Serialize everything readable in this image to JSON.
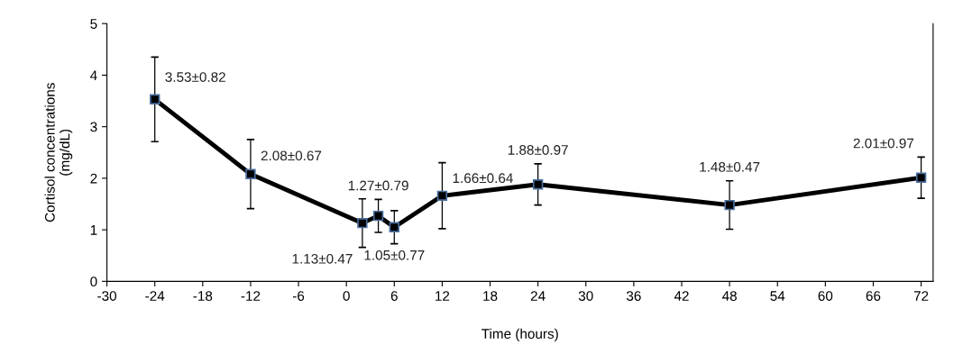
{
  "chart_data": {
    "type": "line",
    "xlabel": "Time (hours)",
    "ylabel": "Cortisol concentrations\n(mg/dL)",
    "x": [
      -24,
      -12,
      2,
      4,
      6,
      12,
      24,
      48,
      72
    ],
    "series": [
      {
        "color": "#000000",
        "values": [
          3.53,
          2.08,
          1.13,
          1.27,
          1.05,
          1.66,
          1.88,
          1.48,
          2.01
        ],
        "errors": [
          0.82,
          0.67,
          0.47,
          0.32,
          0.32,
          0.64,
          0.4,
          0.47,
          0.4
        ],
        "value_labels": [
          "3.53±0.82",
          "2.08±0.67",
          "1.13±0.47",
          "1.27±0.79",
          "1.05±0.77",
          "1.66±0.64",
          "1.88±0.97",
          "1.48±0.47",
          "2.01±0.97"
        ]
      }
    ],
    "xlim": [
      -30,
      73.5
    ],
    "xticks": [
      -30,
      -24,
      -18,
      -12,
      -6,
      0,
      6,
      12,
      18,
      24,
      30,
      36,
      42,
      48,
      54,
      60,
      66,
      72
    ],
    "ylim": [
      0,
      5
    ],
    "yticks": [
      0,
      1,
      2,
      3,
      4,
      5
    ],
    "marker": "square",
    "line_style": "solid",
    "grid": false,
    "legend": false
  }
}
